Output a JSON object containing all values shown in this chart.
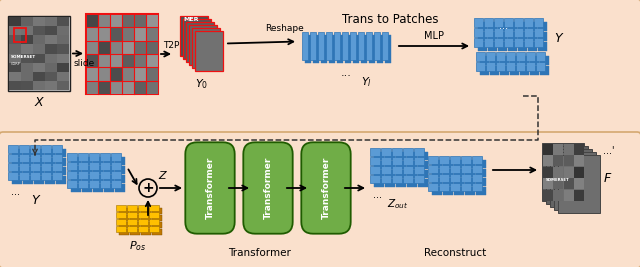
{
  "bg_panel": "#fae0cc",
  "blue_color": "#5b9bd5",
  "blue_dark": "#2e75b6",
  "green_color": "#70ad47",
  "green_dark": "#1f5c00",
  "red_color": "#ee1111",
  "yellow_color": "#ffc000",
  "yellow_dark": "#c07800",
  "title_top": "Trans to Patches",
  "label_X": "X",
  "label_slide": "slide",
  "label_T2P": "T2P",
  "label_Reshape": "Reshape",
  "label_Y0": "$Y_0$",
  "label_Y1": "$Y_l$",
  "label_MLP": "MLP",
  "label_Y_top": "Y",
  "label_Y_bot": "Y",
  "label_Z": "Z",
  "label_Pos": "$P_{os}$",
  "label_Transformer_section": "Transformer",
  "label_Reconstruct": "Reconstruct",
  "label_Zout": "$Z_{out}$",
  "label_F": "F",
  "panel_edge": "#d4a870"
}
